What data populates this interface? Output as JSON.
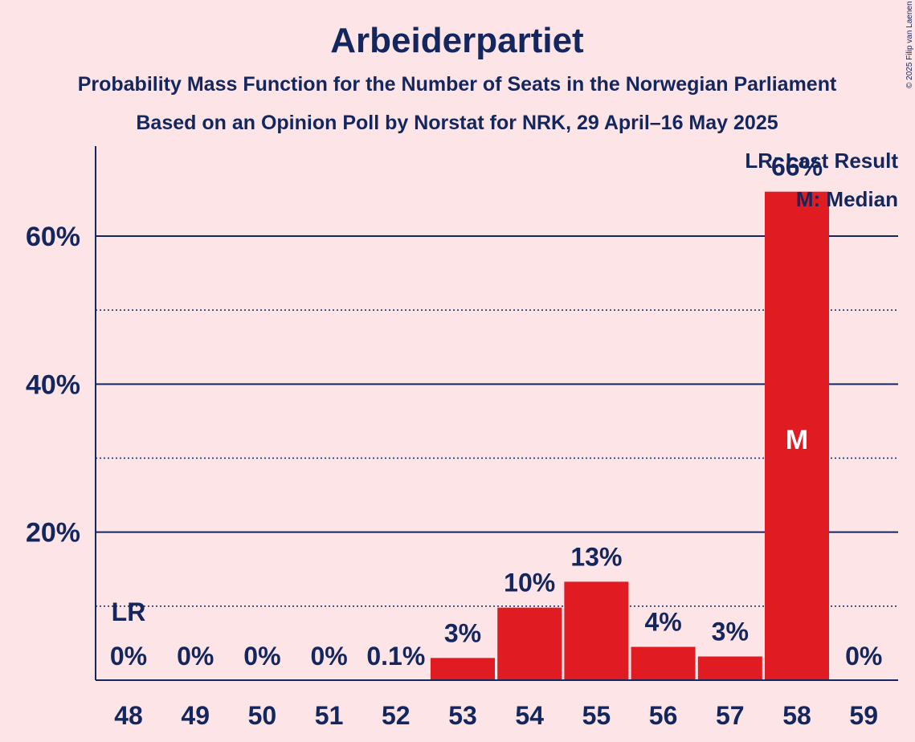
{
  "chart_data": {
    "type": "bar",
    "title": "Arbeiderpartiet",
    "subtitle_1": "Probability Mass Function for the Number of Seats in the Norwegian Parliament",
    "subtitle_2": "Based on an Opinion Poll by Norstat for NRK, 29 April–16 May 2025",
    "categories": [
      "48",
      "49",
      "50",
      "51",
      "52",
      "53",
      "54",
      "55",
      "56",
      "57",
      "58",
      "59"
    ],
    "values": [
      0,
      0,
      0,
      0,
      0.1,
      3.0,
      9.8,
      13.3,
      4.5,
      3.2,
      66.0,
      0
    ],
    "data_labels": [
      "0%",
      "0%",
      "0%",
      "0%",
      "0.1%",
      "3%",
      "10%",
      "13%",
      "4%",
      "3%",
      "66%",
      "0%"
    ],
    "yticks": [
      {
        "value": 20,
        "label": "20%"
      },
      {
        "value": 40,
        "label": "40%"
      },
      {
        "value": 60,
        "label": "60%"
      }
    ],
    "minor_gridlines": [
      10,
      30,
      50
    ],
    "ylim": [
      0,
      72
    ],
    "last_result": {
      "category": "48",
      "label": "LR"
    },
    "median": {
      "category": "58",
      "label": "M"
    },
    "legend": {
      "placement": "top-right",
      "items": [
        "LR: Last Result",
        "M: Median"
      ]
    },
    "bar_color": "#e01b22",
    "text_color": "#13265e",
    "background_color": "#fde4e6",
    "copyright": "© 2025 Filip van Laenen"
  }
}
